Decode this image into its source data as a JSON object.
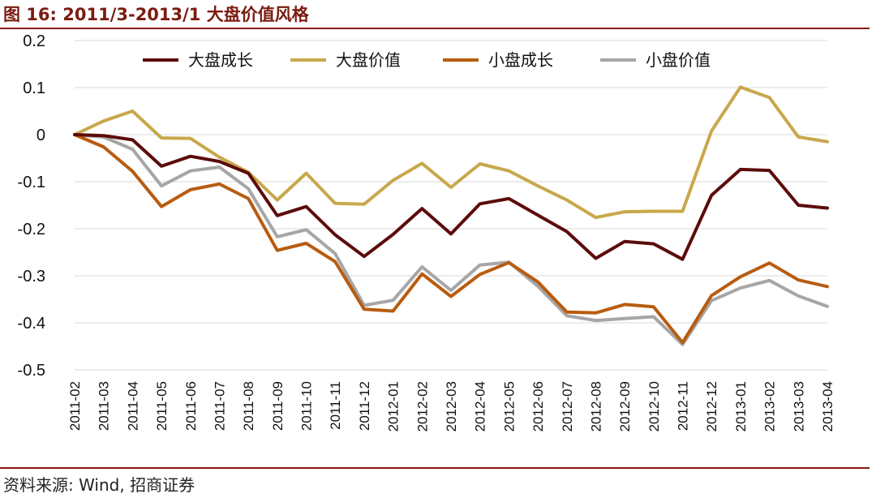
{
  "figure": {
    "title": "图 16:  2011/3-2013/1  大盘价值风格",
    "source": "资料来源: Wind, 招商证券"
  },
  "colors": {
    "rule": "#8b1a10",
    "title": "#7a1c10"
  },
  "chart_data": {
    "type": "line",
    "title": "",
    "xlabel": "",
    "ylabel": "",
    "ylim": [
      -0.5,
      0.2
    ],
    "yticks": [
      0.2,
      0.1,
      0,
      -0.1,
      -0.2,
      -0.3,
      -0.4,
      -0.5
    ],
    "ytick_labels": [
      "0.2",
      "0.1",
      "0",
      "-0.1",
      "-0.2",
      "-0.3",
      "-0.4",
      "-0.5"
    ],
    "grid": true,
    "legend_position": "top",
    "x": [
      "2011-02",
      "2011-03",
      "2011-04",
      "2011-05",
      "2011-06",
      "2011-07",
      "2011-08",
      "2011-09",
      "2011-10",
      "2011-11",
      "2011-12",
      "2012-01",
      "2012-02",
      "2012-03",
      "2012-04",
      "2012-05",
      "2012-06",
      "2012-07",
      "2012-08",
      "2012-09",
      "2012-10",
      "2012-11",
      "2012-12",
      "2013-01",
      "2013-02",
      "2013-03",
      "2013-04"
    ],
    "series": [
      {
        "name": "大盘成长",
        "color": "#5c0b0b",
        "values": [
          0,
          -0.002,
          -0.011,
          -0.067,
          -0.046,
          -0.057,
          -0.082,
          -0.172,
          -0.153,
          -0.213,
          -0.259,
          -0.212,
          -0.157,
          -0.211,
          -0.147,
          -0.136,
          -0.171,
          -0.206,
          -0.263,
          -0.227,
          -0.232,
          -0.265,
          -0.129,
          -0.074,
          -0.076,
          -0.15,
          -0.156
        ]
      },
      {
        "name": "大盘价值",
        "color": "#c8a84b",
        "values": [
          0,
          0.029,
          0.05,
          -0.007,
          -0.008,
          -0.048,
          -0.08,
          -0.139,
          -0.082,
          -0.146,
          -0.148,
          -0.097,
          -0.061,
          -0.112,
          -0.062,
          -0.077,
          -0.109,
          -0.139,
          -0.176,
          -0.164,
          -0.163,
          -0.163,
          0.008,
          0.101,
          0.079,
          -0.005,
          -0.015
        ]
      },
      {
        "name": "小盘成长",
        "color": "#b85c10",
        "values": [
          0,
          -0.026,
          -0.078,
          -0.153,
          -0.117,
          -0.105,
          -0.136,
          -0.246,
          -0.231,
          -0.27,
          -0.371,
          -0.375,
          -0.296,
          -0.344,
          -0.297,
          -0.272,
          -0.313,
          -0.377,
          -0.379,
          -0.361,
          -0.366,
          -0.442,
          -0.342,
          -0.302,
          -0.273,
          -0.309,
          -0.323
        ]
      },
      {
        "name": "小盘价值",
        "color": "#a6a6a6",
        "values": [
          0,
          -0.005,
          -0.031,
          -0.109,
          -0.077,
          -0.069,
          -0.115,
          -0.217,
          -0.202,
          -0.253,
          -0.363,
          -0.352,
          -0.281,
          -0.331,
          -0.277,
          -0.271,
          -0.322,
          -0.385,
          -0.395,
          -0.391,
          -0.387,
          -0.446,
          -0.353,
          -0.326,
          -0.31,
          -0.343,
          -0.365
        ]
      }
    ]
  }
}
